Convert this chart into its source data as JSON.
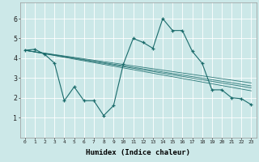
{
  "xlabel": "Humidex (Indice chaleur)",
  "bg_color": "#cce8e8",
  "grid_color": "#ffffff",
  "line_color": "#1a6b6b",
  "xlim": [
    -0.5,
    23.5
  ],
  "ylim": [
    0,
    6.8
  ],
  "yticks": [
    1,
    2,
    3,
    4,
    5,
    6
  ],
  "xticks": [
    0,
    1,
    2,
    3,
    4,
    5,
    6,
    7,
    8,
    9,
    10,
    11,
    12,
    13,
    14,
    15,
    16,
    17,
    18,
    19,
    20,
    21,
    22,
    23
  ],
  "main_line_x": [
    0,
    1,
    2,
    3,
    4,
    5,
    6,
    7,
    8,
    9,
    10,
    11,
    12,
    13,
    14,
    15,
    16,
    17,
    18,
    19,
    20,
    21,
    22,
    23
  ],
  "main_line_y": [
    4.4,
    4.45,
    4.2,
    3.75,
    1.85,
    2.55,
    1.85,
    1.85,
    1.1,
    1.6,
    3.7,
    5.0,
    4.8,
    4.5,
    6.0,
    5.4,
    5.4,
    4.35,
    3.75,
    2.4,
    2.4,
    2.0,
    1.95,
    1.65
  ],
  "trend_lines": [
    {
      "x": [
        0,
        23
      ],
      "y": [
        4.4,
        2.35
      ]
    },
    {
      "x": [
        0,
        23
      ],
      "y": [
        4.4,
        2.5
      ]
    },
    {
      "x": [
        0,
        23
      ],
      "y": [
        4.4,
        2.6
      ]
    },
    {
      "x": [
        0,
        23
      ],
      "y": [
        4.4,
        2.75
      ]
    }
  ],
  "xlabel_fontsize": 6.5,
  "tick_fontsize_x": 4.5,
  "tick_fontsize_y": 6.0
}
